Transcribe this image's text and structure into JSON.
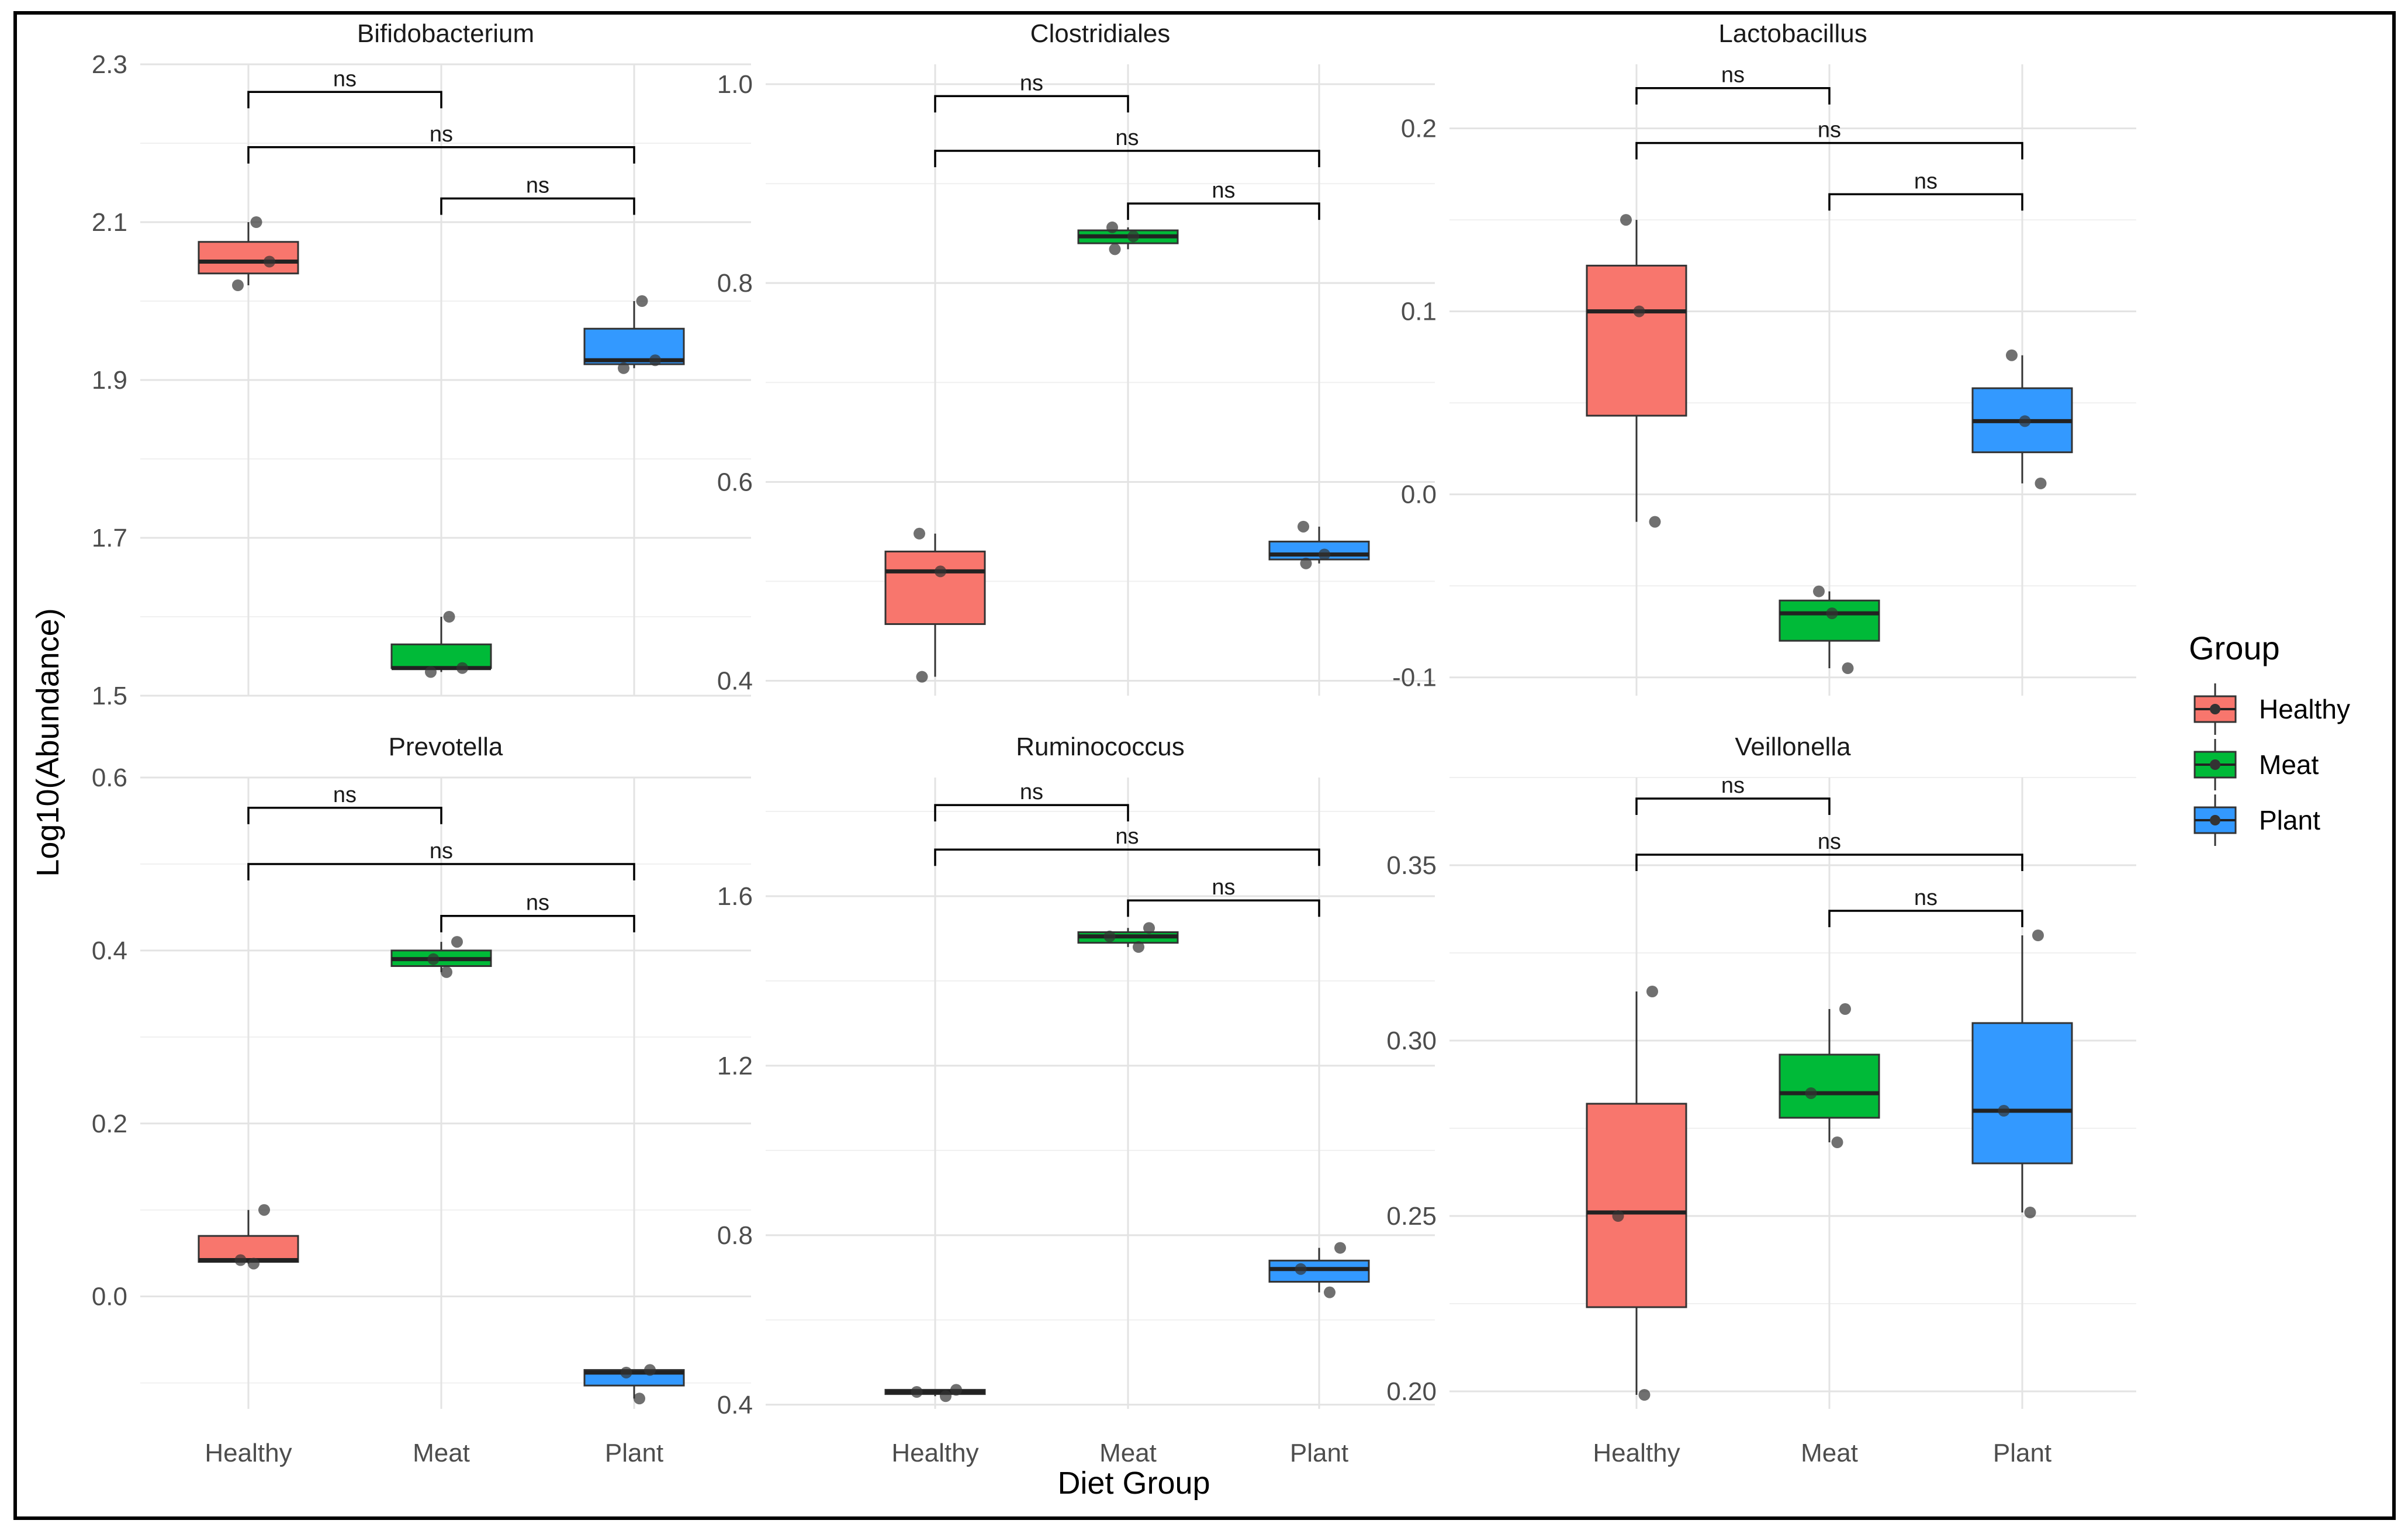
{
  "chart_data": {
    "type": "box",
    "xlabel": "Diet Group",
    "ylabel": "Log10(Abundance)",
    "categories": [
      "Healthy",
      "Meat",
      "Plant"
    ],
    "legend": {
      "title": "Group",
      "position": "right",
      "items": [
        {
          "label": "Healthy",
          "color": "#F8766D"
        },
        {
          "label": "Meat",
          "color": "#00BA38"
        },
        {
          "label": "Plant",
          "color": "#3399FF"
        }
      ]
    },
    "significance_label": "ns",
    "significance_pairs": [
      [
        "Healthy",
        "Meat"
      ],
      [
        "Healthy",
        "Plant"
      ],
      [
        "Meat",
        "Plant"
      ]
    ],
    "panels": [
      {
        "title": "Bifidobacterium",
        "ylim": [
          1.5,
          2.3
        ],
        "ticks": [
          1.5,
          1.7,
          1.9,
          2.1,
          2.3
        ],
        "tick_labels": [
          "1.5",
          "1.7",
          "1.9",
          "2.1",
          "2.3"
        ],
        "boxes": [
          {
            "group": "Healthy",
            "q1": 2.035,
            "median": 2.05,
            "q3": 2.075,
            "min": 2.02,
            "max": 2.1,
            "points": [
              2.1,
              2.05,
              2.02
            ]
          },
          {
            "group": "Meat",
            "q1": 1.535,
            "median": 1.535,
            "q3": 1.565,
            "min": 1.53,
            "max": 1.6,
            "points": [
              1.6,
              1.535,
              1.53
            ]
          },
          {
            "group": "Plant",
            "q1": 1.92,
            "median": 1.925,
            "q3": 1.965,
            "min": 1.915,
            "max": 2.0,
            "points": [
              2.0,
              1.925,
              1.915
            ]
          }
        ],
        "brackets": [
          2.265,
          2.195,
          2.13
        ]
      },
      {
        "title": "Clostridiales",
        "ylim": [
          0.385,
          1.02
        ],
        "ticks": [
          0.4,
          0.6,
          0.8,
          1.0
        ],
        "tick_labels": [
          "0.4",
          "0.6",
          "0.8",
          "1.0"
        ],
        "boxes": [
          {
            "group": "Healthy",
            "q1": 0.457,
            "median": 0.51,
            "q3": 0.53,
            "min": 0.404,
            "max": 0.548,
            "points": [
              0.548,
              0.51,
              0.404
            ]
          },
          {
            "group": "Meat",
            "q1": 0.84,
            "median": 0.847,
            "q3": 0.853,
            "min": 0.834,
            "max": 0.856,
            "points": [
              0.856,
              0.847,
              0.834
            ]
          },
          {
            "group": "Plant",
            "q1": 0.522,
            "median": 0.527,
            "q3": 0.54,
            "min": 0.518,
            "max": 0.555,
            "points": [
              0.555,
              0.527,
              0.518
            ]
          }
        ],
        "brackets": [
          0.988,
          0.933,
          0.88
        ]
      },
      {
        "title": "Lactobacillus",
        "ylim": [
          -0.11,
          0.235
        ],
        "ticks": [
          -0.1,
          0.0,
          0.1,
          0.2
        ],
        "tick_labels": [
          "-0.1",
          "0.0",
          "0.1",
          "0.2"
        ],
        "boxes": [
          {
            "group": "Healthy",
            "q1": 0.043,
            "median": 0.1,
            "q3": 0.125,
            "min": -0.015,
            "max": 0.15,
            "points": [
              0.15,
              0.1,
              -0.015
            ]
          },
          {
            "group": "Meat",
            "q1": -0.08,
            "median": -0.065,
            "q3": -0.058,
            "min": -0.095,
            "max": -0.053,
            "points": [
              -0.053,
              -0.065,
              -0.095
            ]
          },
          {
            "group": "Plant",
            "q1": 0.023,
            "median": 0.04,
            "q3": 0.058,
            "min": 0.006,
            "max": 0.076,
            "points": [
              0.076,
              0.04,
              0.006
            ]
          }
        ],
        "brackets": [
          0.222,
          0.192,
          0.164
        ]
      },
      {
        "title": "Prevotella",
        "ylim": [
          -0.13,
          0.6
        ],
        "ticks": [
          0.0,
          0.2,
          0.4,
          0.6
        ],
        "tick_labels": [
          "0.0",
          "0.2",
          "0.4",
          "0.6"
        ],
        "boxes": [
          {
            "group": "Healthy",
            "q1": 0.04,
            "median": 0.042,
            "q3": 0.07,
            "min": 0.038,
            "max": 0.1,
            "points": [
              0.1,
              0.042,
              0.038
            ]
          },
          {
            "group": "Meat",
            "q1": 0.382,
            "median": 0.39,
            "q3": 0.4,
            "min": 0.375,
            "max": 0.41,
            "points": [
              0.41,
              0.39,
              0.375
            ]
          },
          {
            "group": "Plant",
            "q1": -0.103,
            "median": -0.088,
            "q3": -0.085,
            "min": -0.118,
            "max": -0.085,
            "points": [
              -0.085,
              -0.088,
              -0.118
            ]
          }
        ],
        "brackets": [
          0.565,
          0.5,
          0.44
        ]
      },
      {
        "title": "Ruminococcus",
        "ylim": [
          0.39,
          1.88
        ],
        "ticks": [
          0.4,
          0.8,
          1.2,
          1.6
        ],
        "tick_labels": [
          "0.4",
          "0.8",
          "1.2",
          "1.6"
        ],
        "boxes": [
          {
            "group": "Healthy",
            "q1": 0.425,
            "median": 0.43,
            "q3": 0.435,
            "min": 0.42,
            "max": 0.435,
            "points": [
              0.435,
              0.43,
              0.42
            ]
          },
          {
            "group": "Meat",
            "q1": 1.49,
            "median": 1.505,
            "q3": 1.515,
            "min": 1.48,
            "max": 1.525,
            "points": [
              1.525,
              1.505,
              1.48
            ]
          },
          {
            "group": "Plant",
            "q1": 0.69,
            "median": 0.72,
            "q3": 0.74,
            "min": 0.665,
            "max": 0.77,
            "points": [
              0.77,
              0.72,
              0.665
            ]
          }
        ],
        "brackets": [
          1.815,
          1.71,
          1.59
        ]
      },
      {
        "title": "Veillonella",
        "ylim": [
          0.195,
          0.375
        ],
        "ticks": [
          0.2,
          0.25,
          0.3,
          0.35
        ],
        "tick_labels": [
          "0.20",
          "0.25",
          "0.30",
          "0.35"
        ],
        "boxes": [
          {
            "group": "Healthy",
            "q1": 0.224,
            "median": 0.251,
            "q3": 0.282,
            "min": 0.199,
            "max": 0.314,
            "points": [
              0.314,
              0.25,
              0.199
            ]
          },
          {
            "group": "Meat",
            "q1": 0.278,
            "median": 0.285,
            "q3": 0.296,
            "min": 0.271,
            "max": 0.309,
            "points": [
              0.309,
              0.285,
              0.271
            ]
          },
          {
            "group": "Plant",
            "q1": 0.265,
            "median": 0.28,
            "q3": 0.305,
            "min": 0.251,
            "max": 0.33,
            "points": [
              0.33,
              0.28,
              0.251
            ]
          }
        ],
        "brackets": [
          0.369,
          0.353,
          0.337
        ]
      }
    ]
  }
}
